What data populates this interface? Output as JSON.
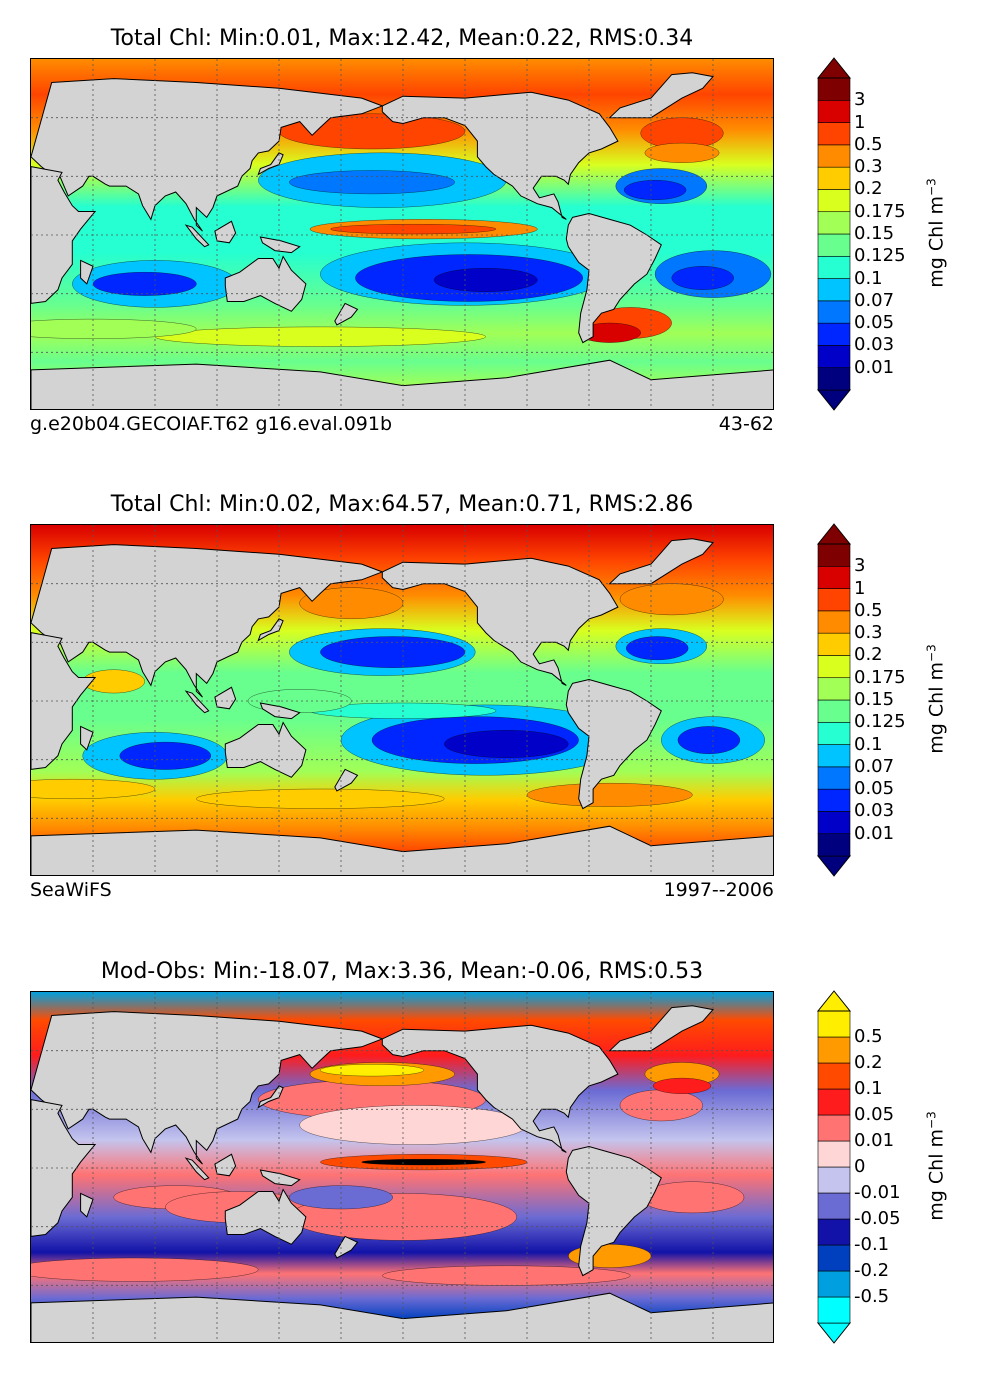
{
  "colors": {
    "land": "#d3d3d3",
    "chl_levels": [
      "#00007f",
      "#0000c9",
      "#0026ff",
      "#0077ff",
      "#00c4ff",
      "#25ffd1",
      "#68ff8e",
      "#a1ff56",
      "#d9ff1f",
      "#ffcc00",
      "#ff8c00",
      "#ff4400",
      "#d90000",
      "#7f0000"
    ],
    "diff_levels": [
      "#00ffff",
      "#009fdf",
      "#0040bf",
      "#1212a8",
      "#6b6bd4",
      "#c4c4ee",
      "#ffd6d6",
      "#ff7373",
      "#ff1c1c",
      "#ff4a00",
      "#ff9a00",
      "#ffee00"
    ]
  },
  "chart_data": [
    {
      "type": "heatmap",
      "title": "Total Chl: Min:0.01, Max:12.42, Mean:0.22, RMS:0.34",
      "left_caption": "g.e20b04.GECOIAF.T62 g16.eval.091b",
      "right_caption": "43-62",
      "colorbar_label": "mg Chl m",
      "colorbar_label_exponent": "−3",
      "colorbar_ticks": [
        "0.01",
        "0.03",
        "0.05",
        "0.07",
        "0.1",
        "0.125",
        "0.15",
        "0.175",
        "0.2",
        "0.3",
        "0.5",
        "1",
        "3"
      ],
      "colorbar_extend": "both",
      "gridlines": "dotted",
      "stats": {
        "min": 0.01,
        "max": 12.42,
        "mean": 0.22,
        "rms": 0.34
      },
      "field": "model"
    },
    {
      "type": "heatmap",
      "title": "Total Chl: Min:0.02, Max:64.57, Mean:0.71, RMS:2.86",
      "left_caption": "SeaWiFS",
      "right_caption": "1997--2006",
      "colorbar_label": "mg Chl m",
      "colorbar_label_exponent": "−3",
      "colorbar_ticks": [
        "0.01",
        "0.03",
        "0.05",
        "0.07",
        "0.1",
        "0.125",
        "0.15",
        "0.175",
        "0.2",
        "0.3",
        "0.5",
        "1",
        "3"
      ],
      "colorbar_extend": "both",
      "gridlines": "dotted",
      "stats": {
        "min": 0.02,
        "max": 64.57,
        "mean": 0.71,
        "rms": 2.86
      },
      "field": "obs"
    },
    {
      "type": "heatmap",
      "title": "Mod-Obs: Min:-18.07, Max:3.36, Mean:-0.06, RMS:0.53",
      "left_caption": "",
      "right_caption": "",
      "colorbar_label": "mg Chl m",
      "colorbar_label_exponent": "−3",
      "colorbar_ticks": [
        "-0.5",
        "-0.2",
        "-0.1",
        "-0.05",
        "-0.01",
        "0",
        "0.01",
        "0.05",
        "0.1",
        "0.2",
        "0.5"
      ],
      "colorbar_extend": "both",
      "gridlines": "dotted",
      "stats": {
        "min": -18.07,
        "max": 3.36,
        "mean": -0.06,
        "rms": 0.53
      },
      "field": "diff"
    }
  ]
}
